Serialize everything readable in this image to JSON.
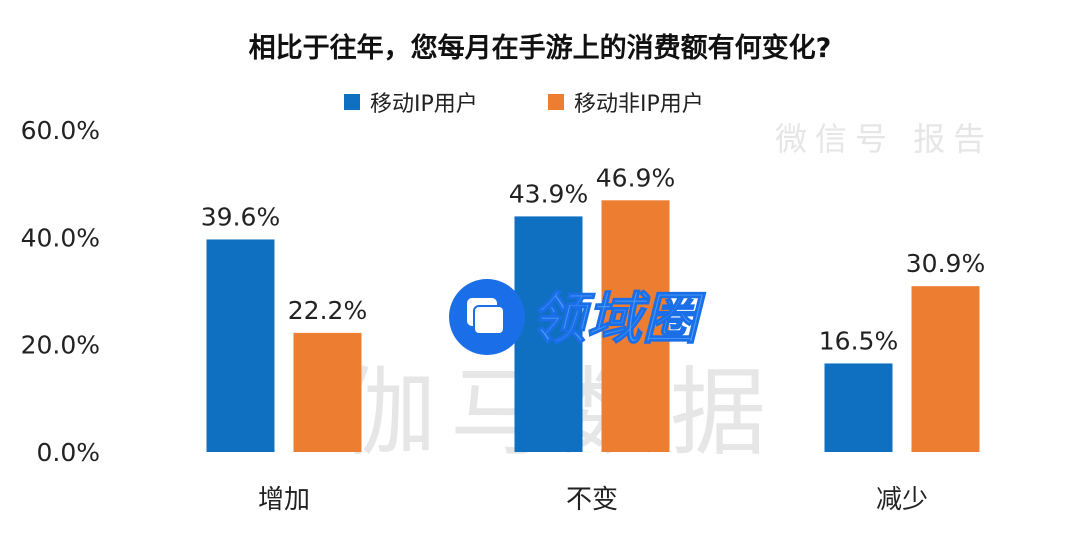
{
  "chart_data": {
    "type": "bar",
    "title": "相比于往年，您每月在手游上的消费额有何变化?",
    "categories": [
      "增加",
      "不变",
      "减少"
    ],
    "series": [
      {
        "name": "移动IP用户",
        "color": "#0f6fc0",
        "values": [
          39.6,
          43.9,
          16.5
        ],
        "labels": [
          "39.6%",
          "43.9%",
          "16.5%"
        ]
      },
      {
        "name": "移动非IP用户",
        "color": "#ed7d31",
        "values": [
          22.2,
          46.9,
          30.9
        ],
        "labels": [
          "22.2%",
          "46.9%",
          "30.9%"
        ]
      }
    ],
    "ylim": [
      0,
      60
    ],
    "yticks": [
      "0.0%",
      "20.0%",
      "40.0%",
      "60.0%"
    ],
    "grid": false,
    "legend": "top-center"
  },
  "watermark": {
    "main": "伽马数据",
    "sub": "微信号 报告",
    "logo": "领域圈",
    "logo_color": "#1a6fe8"
  }
}
